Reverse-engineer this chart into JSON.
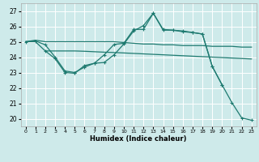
{
  "bg_color": "#ceeaea",
  "grid_color": "#ffffff",
  "line_color": "#1e7a70",
  "xlabel": "Humidex (Indice chaleur)",
  "xlim": [
    -0.5,
    23.5
  ],
  "ylim": [
    19.5,
    27.5
  ],
  "yticks": [
    20,
    21,
    22,
    23,
    24,
    25,
    26,
    27
  ],
  "xticks": [
    0,
    1,
    2,
    3,
    4,
    5,
    6,
    7,
    8,
    9,
    10,
    11,
    12,
    13,
    14,
    15,
    16,
    17,
    18,
    19,
    20,
    21,
    22,
    23
  ],
  "line1_x": [
    0,
    1,
    2,
    3,
    4,
    5,
    6,
    7,
    8,
    9,
    10,
    11,
    12,
    13,
    14,
    15,
    16,
    17,
    18,
    19,
    20,
    21,
    22,
    23
  ],
  "line1_y": [
    25.0,
    25.1,
    25.0,
    25.0,
    25.0,
    25.0,
    25.0,
    25.0,
    25.0,
    25.0,
    24.95,
    24.9,
    24.85,
    24.85,
    24.8,
    24.8,
    24.75,
    24.75,
    24.75,
    24.7,
    24.7,
    24.7,
    24.65,
    24.65
  ],
  "line2_x": [
    0,
    1,
    2,
    3,
    4,
    5,
    6,
    7,
    8,
    9,
    10,
    11,
    12,
    13,
    14,
    15,
    16,
    17,
    18,
    19,
    20,
    21,
    22,
    23
  ],
  "line2_y": [
    25.0,
    25.0,
    24.4,
    24.4,
    24.4,
    24.4,
    24.38,
    24.35,
    24.32,
    24.3,
    24.27,
    24.24,
    24.21,
    24.18,
    24.15,
    24.12,
    24.09,
    24.06,
    24.03,
    24.0,
    23.97,
    23.94,
    23.91,
    23.88
  ],
  "line3_x": [
    2,
    3,
    4,
    5,
    6,
    7,
    8,
    9,
    10,
    11,
    12,
    13,
    14,
    15,
    16,
    17,
    18,
    19,
    20
  ],
  "line3_y": [
    24.4,
    23.9,
    23.0,
    22.95,
    23.45,
    23.6,
    23.65,
    24.15,
    24.85,
    25.7,
    26.05,
    26.85,
    25.75,
    25.75,
    25.65,
    25.6,
    25.5,
    23.4,
    22.2
  ],
  "line4_x": [
    0,
    1,
    2,
    3,
    4,
    5,
    6,
    7,
    8,
    9,
    10,
    11,
    12,
    13,
    14,
    15,
    16,
    17,
    18,
    19,
    20,
    21,
    22,
    23
  ],
  "line4_y": [
    25.0,
    25.05,
    24.8,
    24.0,
    23.1,
    23.0,
    23.35,
    23.6,
    24.15,
    24.82,
    24.9,
    25.8,
    25.8,
    26.85,
    25.8,
    25.75,
    25.7,
    25.6,
    25.5,
    23.4,
    22.2,
    21.05,
    20.05,
    19.9
  ]
}
